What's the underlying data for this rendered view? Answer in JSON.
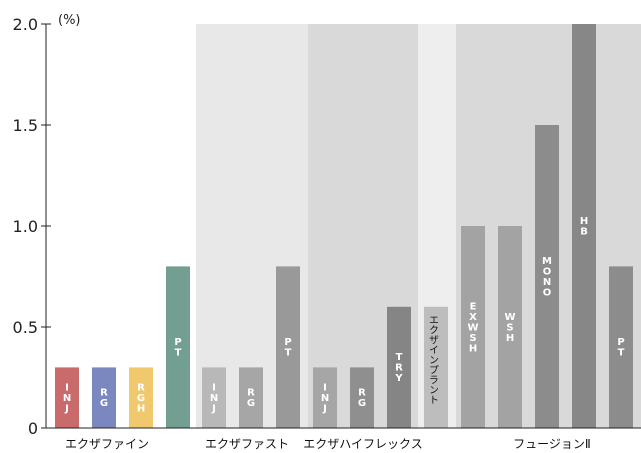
{
  "chart_data": {
    "type": "bar",
    "unit_label": "(%)",
    "ylim": [
      0,
      2.0
    ],
    "y_ticks": [
      "0",
      "0.5",
      "1.0",
      "1.5",
      "2.0"
    ],
    "grid": false,
    "groups": [
      {
        "name": "エクザファイン",
        "bg": "#ffffff"
      },
      {
        "name": "エクザファスト",
        "bg": "#e8e8e8"
      },
      {
        "name": "エクザハイフレックス",
        "bg": "#d9d9d9"
      },
      {
        "name": "",
        "bg": "#eeeeee"
      },
      {
        "name": "フュージョンⅡ",
        "bg": "#d9d9d9"
      }
    ],
    "bars": [
      {
        "label": "INJ",
        "value": 0.3,
        "color": "#c96b6b",
        "group": 0
      },
      {
        "label": "RG",
        "value": 0.3,
        "color": "#7a88bf",
        "group": 0
      },
      {
        "label": "RGH",
        "value": 0.3,
        "color": "#f0c86e",
        "group": 0
      },
      {
        "label": "PT",
        "value": 0.8,
        "color": "#739e92",
        "group": 0
      },
      {
        "label": "INJ",
        "value": 0.3,
        "color": "#b8b8b8",
        "group": 1
      },
      {
        "label": "RG",
        "value": 0.3,
        "color": "#a6a6a6",
        "group": 1
      },
      {
        "label": "PT",
        "value": 0.8,
        "color": "#999999",
        "group": 1
      },
      {
        "label": "INJ",
        "value": 0.3,
        "color": "#a6a6a6",
        "group": 2
      },
      {
        "label": "RG",
        "value": 0.3,
        "color": "#8f8f8f",
        "group": 2
      },
      {
        "label": "TRY",
        "value": 0.6,
        "color": "#858585",
        "group": 2
      },
      {
        "label": "エクザインプラント",
        "value": 0.6,
        "color": "#bdbdbd",
        "group": 3,
        "dark_label": true
      },
      {
        "label": "EXWSH",
        "value": 1.0,
        "color": "#a3a3a3",
        "group": 4
      },
      {
        "label": "WSH",
        "value": 1.0,
        "color": "#a3a3a3",
        "group": 4
      },
      {
        "label": "MONO",
        "value": 1.5,
        "color": "#8c8c8c",
        "group": 4
      },
      {
        "label": "HB",
        "value": 2.0,
        "color": "#878787",
        "group": 4
      },
      {
        "label": "PT",
        "value": 0.8,
        "color": "#8c8c8c",
        "group": 4
      }
    ]
  }
}
